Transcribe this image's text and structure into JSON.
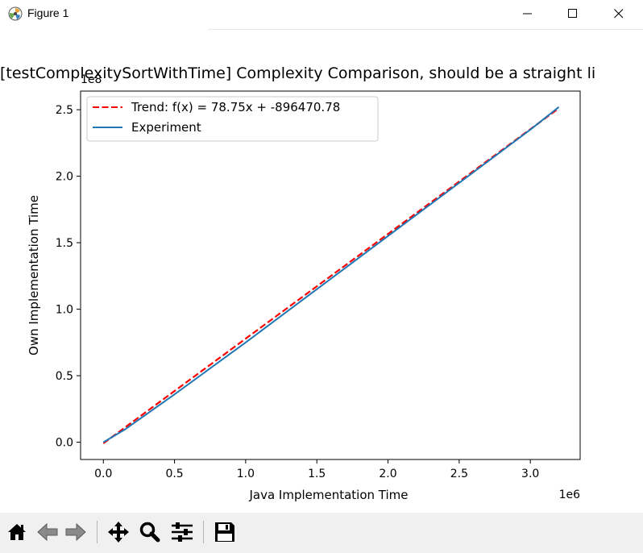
{
  "window": {
    "title": "Figure 1",
    "buttons": [
      "minimize",
      "maximize",
      "close"
    ]
  },
  "toolbar": {
    "items": [
      {
        "name": "home-button",
        "icon": "home-icon"
      },
      {
        "name": "back-button",
        "icon": "arrow-left-icon"
      },
      {
        "name": "forward-button",
        "icon": "arrow-right-icon"
      },
      {
        "name": "pan-button",
        "icon": "move-icon"
      },
      {
        "name": "zoom-button",
        "icon": "magnifier-icon"
      },
      {
        "name": "configure-subplots-button",
        "icon": "sliders-icon"
      },
      {
        "name": "save-button",
        "icon": "floppy-icon"
      }
    ]
  },
  "chart_data": {
    "type": "line",
    "title": "[testComplexitySortWithTime] Complexity Comparison, should be a straight li",
    "xlabel": "Java Implementation Time",
    "ylabel": "Own Implementation Time",
    "x_offset_label": "1e6",
    "y_offset_label": "1e8",
    "xlim": [
      -0.16,
      3.35
    ],
    "ylim": [
      -0.13,
      2.64
    ],
    "x_ticks": [
      0.0,
      0.5,
      1.0,
      1.5,
      2.0,
      2.5,
      3.0
    ],
    "x_tick_labels": [
      "0.0",
      "0.5",
      "1.0",
      "1.5",
      "2.0",
      "2.5",
      "3.0"
    ],
    "y_ticks": [
      0.0,
      0.5,
      1.0,
      1.5,
      2.0,
      2.5
    ],
    "y_tick_labels": [
      "0.0",
      "0.5",
      "1.0",
      "1.5",
      "2.0",
      "2.5"
    ],
    "grid": false,
    "legend_position": "upper-left",
    "series": [
      {
        "name": "Trend: f(x) = 78.75x + -896470.78",
        "style": "dashed",
        "color": "#ff0000",
        "x": [
          0.0,
          3.2
        ],
        "y": [
          -0.009,
          2.511
        ]
      },
      {
        "name": "Experiment",
        "style": "solid",
        "color": "#1f77b4",
        "x": [
          0.0,
          0.15,
          0.5,
          1.0,
          1.5,
          2.0,
          2.5,
          3.0,
          3.2
        ],
        "y": [
          0.0,
          0.095,
          0.36,
          0.75,
          1.15,
          1.55,
          1.95,
          2.35,
          2.52
        ]
      }
    ]
  }
}
